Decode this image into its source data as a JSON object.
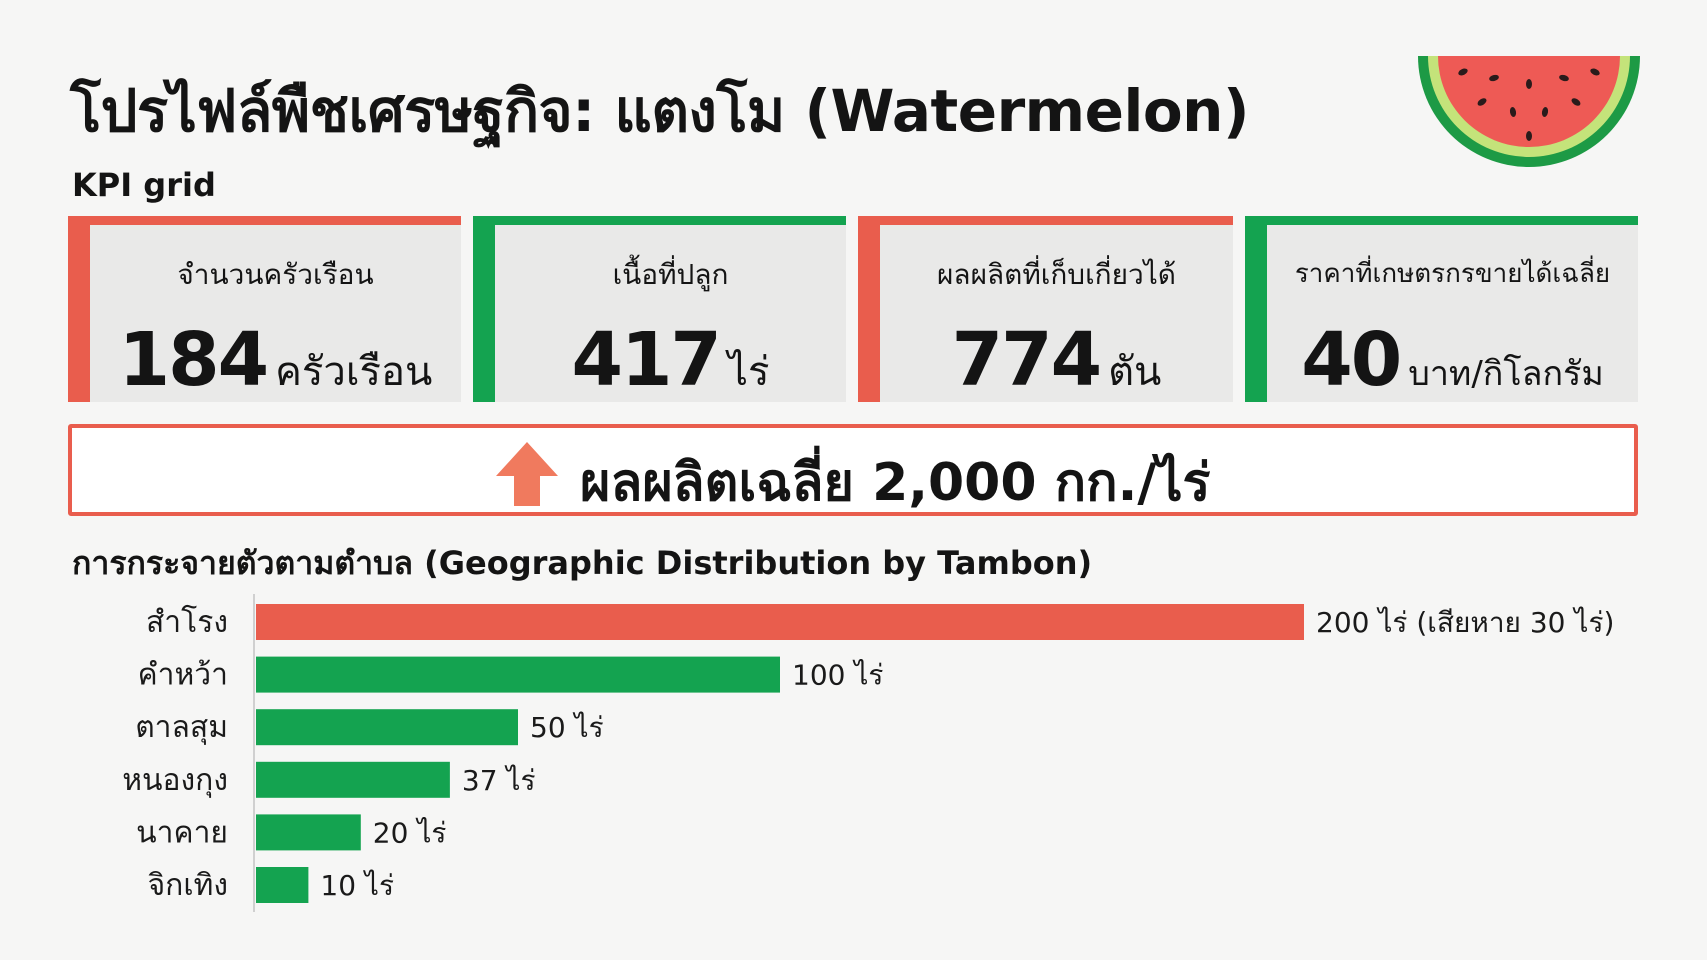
{
  "title": "โปรไฟล์พืชเศรษฐกิจ: แตงโม (Watermelon)",
  "kpi_heading": "KPI grid",
  "kpis": [
    {
      "label": "จำนวนครัวเรือน",
      "value": "184",
      "unit": "ครัวเรือน",
      "accent": "#e95d4d"
    },
    {
      "label": "เนื้อที่ปลูก",
      "value": "417",
      "unit": "ไร่",
      "accent": "#14a350"
    },
    {
      "label": "ผลผลิตที่เก็บเกี่ยวได้",
      "value": "774",
      "unit": "ตัน",
      "accent": "#e95d4d"
    },
    {
      "label": "ราคาที่เกษตรกรขายได้เฉลี่ย",
      "value": "40",
      "unit": "บาท/กิโลกรัม",
      "accent": "#14a350"
    }
  ],
  "average_yield": {
    "icon": "up-arrow-icon",
    "text": "ผลผลิตเฉลี่ย 2,000 กก./ไร่"
  },
  "distribution_heading": "การกระจายตัวตามตำบล (Geographic Distribution by Tambon)",
  "colors": {
    "red": "#e95d4d",
    "green": "#14a350"
  },
  "chart_data": {
    "type": "bar",
    "orientation": "horizontal",
    "title": "การกระจายตัวตามตำบล (Geographic Distribution by Tambon)",
    "categories": [
      "สำโรง",
      "คำหว้า",
      "ตาลสุม",
      "หนองกุง",
      "นาคาย",
      "จิกเทิง"
    ],
    "values": [
      200,
      100,
      50,
      37,
      20,
      10
    ],
    "value_labels": [
      "200 ไร่ (เสียหาย 30 ไร่)",
      "100 ไร่",
      "50 ไร่",
      "37 ไร่",
      "20 ไร่",
      "10 ไร่"
    ],
    "bar_colors": [
      "#e95d4d",
      "#14a350",
      "#14a350",
      "#14a350",
      "#14a350",
      "#14a350"
    ],
    "xlim": [
      0,
      200
    ],
    "unit": "ไร่",
    "grid": false,
    "legend": "none"
  }
}
